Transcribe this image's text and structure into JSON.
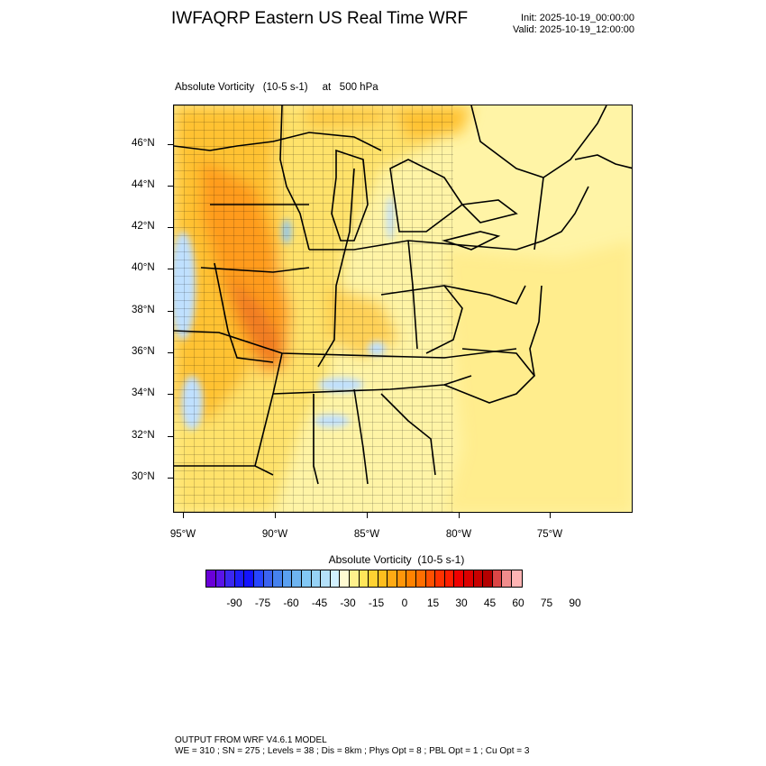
{
  "header": {
    "title": "IWFAQRP Eastern US Real Time WRF",
    "init": "Init: 2025-10-19_00:00:00",
    "valid": "Valid: 2025-10-19_12:00:00"
  },
  "field_title": "Absolute Vorticity   (10-5 s-1)     at   500 hPa",
  "map": {
    "lat_labels": [
      "46°N",
      "44°N",
      "42°N",
      "40°N",
      "38°N",
      "36°N",
      "34°N",
      "32°N",
      "30°N"
    ],
    "lon_labels": [
      "95°W",
      "90°W",
      "85°W",
      "80°W",
      "75°W"
    ],
    "colors": {
      "background_field": "#fff4a6",
      "positive_light": "#ffe26a",
      "positive_medium": "#ffc232",
      "positive_strong": "#ff9b1a",
      "positive_peak": "#f07a20",
      "negative_light": "#bfe0ff",
      "negative_medium": "#8fc6f0",
      "boundary": "#000000"
    }
  },
  "colorbar": {
    "title": "Absolute Vorticity  (10-5 s-1)",
    "labels": [
      "-90",
      "-75",
      "-60",
      "-45",
      "-30",
      "-15",
      "0",
      "15",
      "30",
      "45",
      "60",
      "75",
      "90"
    ],
    "colors": [
      "#6a00d8",
      "#5a14e8",
      "#3c28f0",
      "#1e1efa",
      "#1414ff",
      "#2846ff",
      "#3c64f0",
      "#4682ee",
      "#5aa0f0",
      "#6eb4f0",
      "#82c8f5",
      "#96d2f5",
      "#b4e1fa",
      "#d2f0ff",
      "#fffad2",
      "#fff08c",
      "#ffe65a",
      "#ffd232",
      "#ffbe1e",
      "#ffaa14",
      "#ff960a",
      "#ff8200",
      "#ff6e00",
      "#ff5000",
      "#ff3200",
      "#ff1e00",
      "#f00000",
      "#dc0000",
      "#c80000",
      "#b40000",
      "#dc4646",
      "#f08c8c",
      "#ffb4b4"
    ]
  },
  "footer": {
    "line1": "OUTPUT FROM WRF V4.6.1 MODEL",
    "line2": "WE = 310 ; SN = 275 ; Levels = 38 ; Dis = 8km ; Phys Opt = 8 ; PBL Opt = 1 ; Cu Opt = 3"
  }
}
